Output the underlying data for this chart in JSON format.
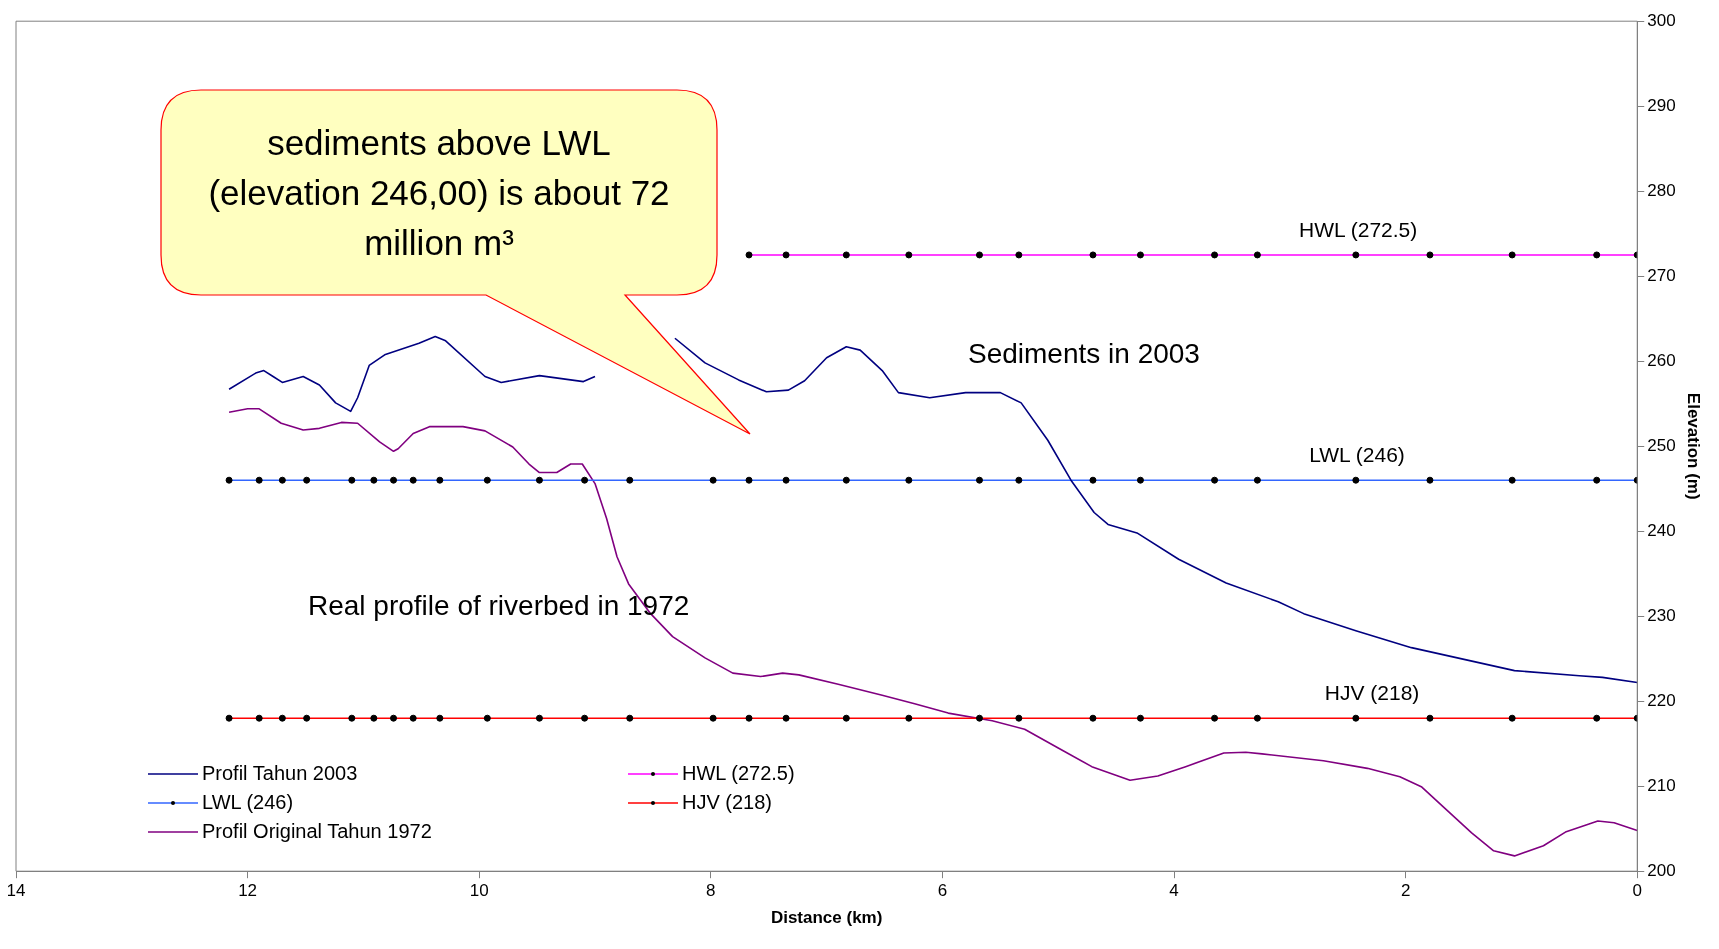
{
  "chart_data": {
    "type": "line",
    "xlabel": "Distance (km)",
    "ylabel": "Elevation (m)",
    "xlim": [
      14,
      0
    ],
    "xticks": [
      0,
      2,
      4,
      6,
      8,
      10,
      12,
      14
    ],
    "ylim": [
      200,
      300
    ],
    "yticks": [
      200,
      210,
      220,
      230,
      240,
      250,
      260,
      270,
      280,
      290,
      300
    ],
    "grid": false,
    "legend": "bottom left",
    "series": [
      {
        "name": "Profil Tahun 2003",
        "color": "#000080",
        "marker": "none",
        "x": [
          12.16,
          11.93,
          11.86,
          11.78,
          11.7,
          11.52,
          11.38,
          11.24,
          11.11,
          11.05,
          10.95,
          10.81,
          10.52,
          10.38,
          10.29,
          9.95,
          9.81,
          9.48,
          9.1,
          9.0,
          8.92,
          8.52,
          8.31,
          8.05,
          7.76,
          7.52,
          7.33,
          7.19,
          7.0,
          6.83,
          6.71,
          6.52,
          6.38,
          6.11,
          5.8,
          5.5,
          5.32,
          5.09,
          4.89,
          4.69,
          4.57,
          4.32,
          3.96,
          3.55,
          3.1,
          2.88,
          2.43,
          1.95,
          1.06,
          0.5,
          0.3,
          0
        ],
        "values": [
          256.7,
          258.6,
          258.9,
          258.2,
          257.5,
          258.2,
          257.2,
          255.1,
          254.1,
          255.7,
          259.5,
          260.8,
          262.1,
          262.9,
          262.4,
          258.2,
          257.5,
          258.3,
          257.6,
          258.2,
          null,
          null,
          262.7,
          259.8,
          257.8,
          256.4,
          256.6,
          257.7,
          260.4,
          261.7,
          261.3,
          258.9,
          256.3,
          255.7,
          256.3,
          256.3,
          255.1,
          250.7,
          246.0,
          242.2,
          240.8,
          239.8,
          236.7,
          233.9,
          231.7,
          230.3,
          228.3,
          226.3,
          223.6,
          223.0,
          222.8,
          222.2
        ]
      },
      {
        "name": "HWL (272.5)",
        "color": "#ff00ff",
        "marker": "circle",
        "x": [
          7.67,
          7.35,
          6.83,
          6.29,
          5.68,
          5.34,
          4.7,
          4.29,
          3.65,
          3.28,
          2.43,
          1.79,
          1.08,
          0.35,
          0
        ],
        "values": [
          272.5,
          272.5,
          272.5,
          272.5,
          272.5,
          272.5,
          272.5,
          272.5,
          272.5,
          272.5,
          272.5,
          272.5,
          272.5,
          272.5,
          272.5
        ]
      },
      {
        "name": "LWL (246)",
        "color": "#3366ff",
        "marker": "circle",
        "x": [
          12.16,
          11.9,
          11.7,
          11.49,
          11.1,
          10.91,
          10.74,
          10.57,
          10.34,
          9.93,
          9.48,
          9.09,
          8.7,
          7.98,
          7.67,
          7.35,
          6.83,
          6.29,
          5.68,
          5.34,
          4.7,
          4.29,
          3.65,
          3.28,
          2.43,
          1.79,
          1.08,
          0.35,
          0
        ],
        "values": [
          246,
          246,
          246,
          246,
          246,
          246,
          246,
          246,
          246,
          246,
          246,
          246,
          246,
          246,
          246,
          246,
          246,
          246,
          246,
          246,
          246,
          246,
          246,
          246,
          246,
          246,
          246,
          246,
          246
        ]
      },
      {
        "name": "HJV (218)",
        "color": "#ff0000",
        "marker": "circle",
        "x": [
          12.16,
          11.9,
          11.7,
          11.49,
          11.1,
          10.91,
          10.74,
          10.57,
          10.34,
          9.93,
          9.48,
          9.09,
          8.7,
          7.98,
          7.67,
          7.35,
          6.83,
          6.29,
          5.68,
          5.34,
          4.7,
          4.29,
          3.65,
          3.28,
          2.43,
          1.79,
          1.08,
          0.35,
          0
        ],
        "values": [
          218,
          218,
          218,
          218,
          218,
          218,
          218,
          218,
          218,
          218,
          218,
          218,
          218,
          218,
          218,
          218,
          218,
          218,
          218,
          218,
          218,
          218,
          218,
          218,
          218,
          218,
          218,
          218,
          218
        ]
      },
      {
        "name": "Profil Original Tahun 1972",
        "color": "#800080",
        "marker": "none",
        "x": [
          12.16,
          12.0,
          11.9,
          11.71,
          11.52,
          11.38,
          11.19,
          11.05,
          10.86,
          10.74,
          10.7,
          10.57,
          10.43,
          10.14,
          9.95,
          9.71,
          9.57,
          9.48,
          9.33,
          9.21,
          9.11,
          9.0,
          8.9,
          8.81,
          8.71,
          8.52,
          8.33,
          8.05,
          7.81,
          7.57,
          7.38,
          7.24,
          6.9,
          6.52,
          6.24,
          5.95,
          5.57,
          5.29,
          5.0,
          4.71,
          4.38,
          4.14,
          3.9,
          3.57,
          3.38,
          3.24,
          2.71,
          2.33,
          2.05,
          1.86,
          1.67,
          1.43,
          1.24,
          1.06,
          0.81,
          0.62,
          0.34,
          0.2,
          0
        ],
        "values": [
          254.0,
          254.4,
          254.4,
          252.7,
          251.9,
          252.1,
          252.8,
          252.7,
          250.5,
          249.4,
          249.7,
          251.5,
          252.3,
          252.3,
          251.8,
          249.9,
          247.9,
          246.9,
          246.9,
          247.9,
          247.9,
          245.6,
          241.5,
          237.0,
          233.8,
          230.3,
          227.6,
          225.1,
          223.3,
          222.9,
          223.3,
          223.1,
          222.0,
          220.7,
          219.7,
          218.6,
          217.7,
          216.7,
          214.5,
          212.3,
          210.7,
          211.2,
          212.3,
          213.9,
          214.0,
          213.8,
          213.0,
          212.1,
          211.1,
          209.9,
          207.5,
          204.5,
          202.4,
          201.8,
          203.0,
          204.6,
          205.9,
          205.7,
          204.8
        ]
      }
    ],
    "annotations": [
      "sediments above LWL (elevation 246,00) is about 72 million m³",
      {
        "text": "HWL (272.5)",
        "x": 2.41,
        "y": 272.5
      },
      {
        "text": "LWL (246)",
        "x": 2.42,
        "y": 246
      },
      {
        "text": "HJV (218)",
        "x": 2.29,
        "y": 218
      },
      "Sediments in 2003",
      "Real profile of riverbed in 1972"
    ]
  }
}
